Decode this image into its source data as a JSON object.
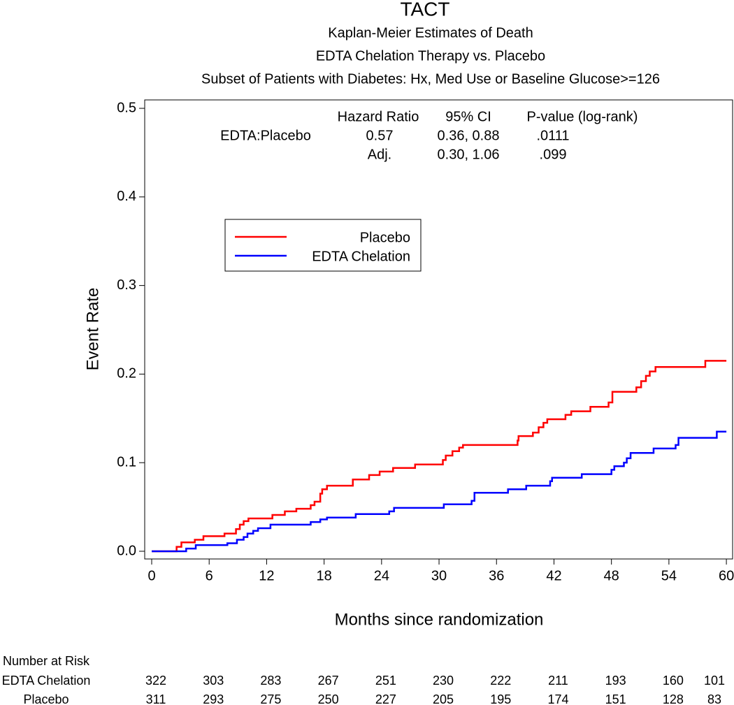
{
  "chart_data": {
    "type": "step-line",
    "title": "TACT",
    "subtitles": [
      "Kaplan-Meier Estimates of Death",
      "EDTA Chelation Therapy vs. Placebo",
      "Subset of Patients with Diabetes: Hx, Med Use or Baseline Glucose>=126"
    ],
    "x_label": "Months since randomization",
    "y_label": "Event Rate",
    "xlim": [
      -0.73,
      60.65
    ],
    "ylim": [
      -0.0087,
      0.5095
    ],
    "xticks": [
      0,
      6,
      12,
      18,
      24,
      30,
      36,
      42,
      48,
      54,
      60
    ],
    "yticks": [
      {
        "value": 0,
        "label": "0.0"
      },
      0.1,
      0.2,
      0.3,
      0.4,
      0.5
    ],
    "series": [
      {
        "name": "Placebo",
        "color": "#ff0000",
        "x": [
          0,
          2.6,
          3.1,
          4.5,
          5.4,
          7.6,
          8.8,
          9.2,
          9.6,
          10.1,
          12.6,
          13.9,
          15.1,
          16.6,
          17.0,
          17.6,
          17.8,
          18.3,
          21.0,
          22.7,
          23.8,
          25.2,
          27.5,
          30.4,
          30.7,
          31.4,
          32.1,
          32.5,
          38.2,
          38.3,
          39.8,
          40.4,
          40.9,
          41.3,
          43.2,
          43.8,
          45.8,
          47.7,
          48.1,
          50.6,
          51.1,
          51.6,
          52.0,
          52.6,
          57.8,
          60
        ],
        "values": [
          0,
          0.005,
          0.01,
          0.013,
          0.017,
          0.02,
          0.025,
          0.03,
          0.034,
          0.037,
          0.041,
          0.045,
          0.048,
          0.052,
          0.056,
          0.065,
          0.07,
          0.074,
          0.081,
          0.086,
          0.09,
          0.094,
          0.098,
          0.103,
          0.108,
          0.113,
          0.117,
          0.12,
          0.125,
          0.13,
          0.134,
          0.14,
          0.145,
          0.149,
          0.154,
          0.158,
          0.163,
          0.168,
          0.18,
          0.185,
          0.192,
          0.198,
          0.203,
          0.208,
          0.215,
          0.215
        ]
      },
      {
        "name": "EDTA Chelation",
        "color": "#0000ff",
        "x": [
          0,
          3.6,
          4.6,
          7.9,
          8.9,
          9.6,
          10.0,
          10.6,
          11.1,
          12.4,
          16.6,
          17.6,
          18.3,
          21.3,
          24.8,
          25.3,
          30.5,
          33.4,
          33.7,
          37.2,
          39.1,
          41.6,
          41.8,
          44.9,
          48.0,
          48.3,
          49.3,
          49.6,
          50.0,
          52.4,
          54.7,
          55.0,
          59.0,
          60
        ],
        "values": [
          0,
          0.003,
          0.007,
          0.009,
          0.013,
          0.016,
          0.02,
          0.023,
          0.026,
          0.03,
          0.033,
          0.036,
          0.038,
          0.042,
          0.045,
          0.049,
          0.053,
          0.057,
          0.066,
          0.07,
          0.074,
          0.079,
          0.083,
          0.087,
          0.092,
          0.096,
          0.1,
          0.105,
          0.111,
          0.116,
          0.12,
          0.128,
          0.135,
          0.135
        ]
      }
    ],
    "stats_table": {
      "headers": [
        "Hazard Ratio",
        "95% CI",
        "P-value (log-rank)"
      ],
      "rows": [
        {
          "label": "EDTA:Placebo",
          "hr": "0.57",
          "ci": "0.36, 0.88",
          "p": ".0111"
        },
        {
          "hr": "Adj.",
          "ci": "0.30, 1.06",
          "p": ".099"
        }
      ]
    },
    "risk_table": {
      "title": "Number at Risk",
      "rows": [
        {
          "label": "EDTA Chelation",
          "values": [
            322,
            303,
            283,
            267,
            251,
            230,
            222,
            211,
            193,
            160,
            101
          ]
        },
        {
          "label": "Placebo",
          "values": [
            311,
            293,
            275,
            250,
            227,
            205,
            195,
            174,
            151,
            128,
            83
          ]
        }
      ]
    }
  }
}
